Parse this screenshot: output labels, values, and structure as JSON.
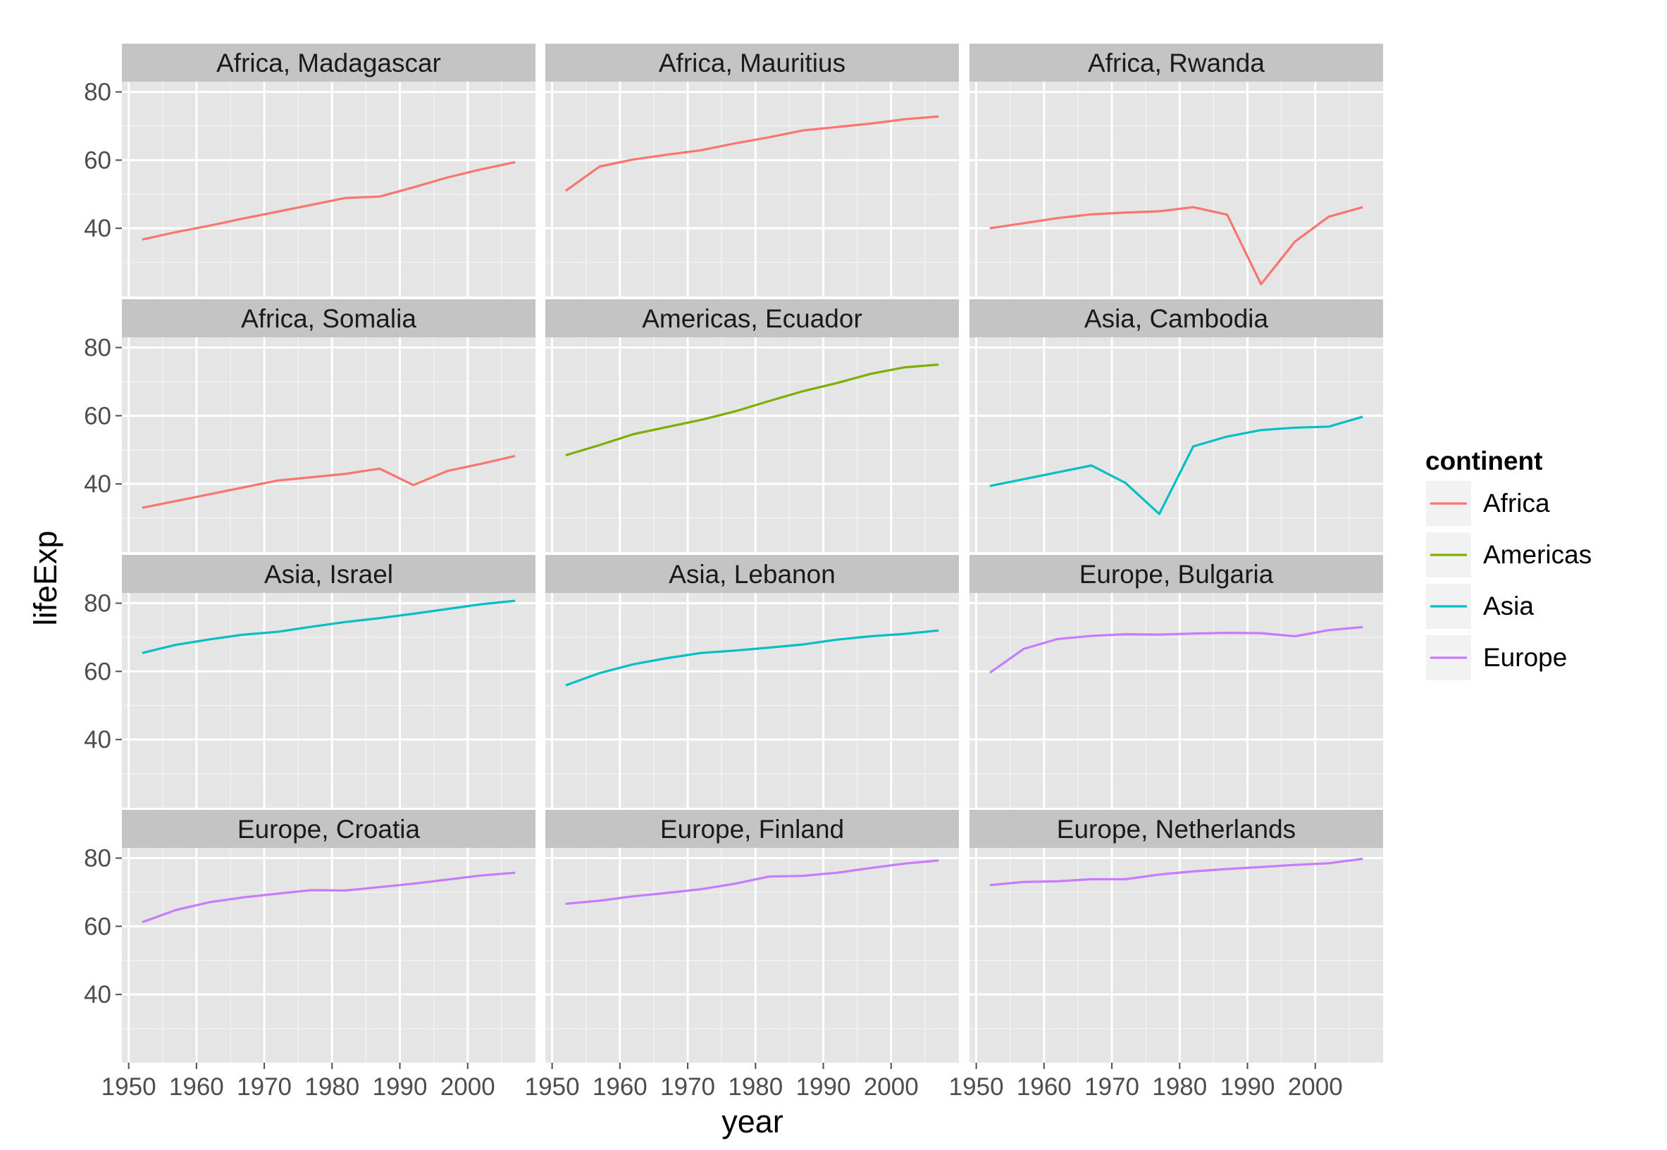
{
  "chart_data": {
    "type": "line",
    "xlabel": "year",
    "ylabel": "lifeExp",
    "xlim": [
      1949,
      2010
    ],
    "ylim": [
      20,
      83
    ],
    "x_ticks": [
      1950,
      1960,
      1970,
      1980,
      1990,
      2000
    ],
    "y_ticks": [
      40,
      60,
      80
    ],
    "x": [
      1952,
      1957,
      1962,
      1967,
      1972,
      1977,
      1982,
      1987,
      1992,
      1997,
      2002,
      2007
    ],
    "colors": {
      "Africa": "#F8766D",
      "Americas": "#7CAE00",
      "Asia": "#00BFC4",
      "Europe": "#C77CFF"
    },
    "legend": {
      "title": "continent",
      "placement": "right",
      "entries": [
        "Africa",
        "Americas",
        "Asia",
        "Europe"
      ]
    },
    "grid": true,
    "panels": [
      {
        "label": "Africa, Madagascar",
        "continent": "Africa",
        "values": [
          36.7,
          38.9,
          40.8,
          42.9,
          44.9,
          46.9,
          48.9,
          49.3,
          52.0,
          54.9,
          57.3,
          59.4
        ]
      },
      {
        "label": "Africa, Mauritius",
        "continent": "Africa",
        "values": [
          51.0,
          58.1,
          60.2,
          61.6,
          62.9,
          64.9,
          66.7,
          68.7,
          69.7,
          70.7,
          72.0,
          72.8
        ]
      },
      {
        "label": "Africa, Rwanda",
        "continent": "Africa",
        "values": [
          40.0,
          41.5,
          43.0,
          44.1,
          44.6,
          45.0,
          46.2,
          44.0,
          23.6,
          36.1,
          43.4,
          46.2
        ]
      },
      {
        "label": "Africa, Somalia",
        "continent": "Africa",
        "values": [
          33.0,
          35.0,
          37.0,
          39.0,
          41.0,
          41.97,
          42.95,
          44.5,
          39.66,
          43.8,
          45.9,
          48.2
        ]
      },
      {
        "label": "Americas, Ecuador",
        "continent": "Americas",
        "values": [
          48.4,
          51.4,
          54.6,
          56.7,
          58.8,
          61.3,
          64.3,
          67.2,
          69.6,
          72.3,
          74.2,
          75.0
        ]
      },
      {
        "label": "Asia, Cambodia",
        "continent": "Asia",
        "values": [
          39.4,
          41.4,
          43.4,
          45.4,
          40.3,
          31.2,
          51.0,
          53.9,
          55.8,
          56.5,
          56.8,
          59.7
        ]
      },
      {
        "label": "Asia, Israel",
        "continent": "Asia",
        "values": [
          65.4,
          67.8,
          69.4,
          70.8,
          71.6,
          73.1,
          74.5,
          75.6,
          76.9,
          78.3,
          79.7,
          80.7
        ]
      },
      {
        "label": "Asia, Lebanon",
        "continent": "Asia",
        "values": [
          55.9,
          59.5,
          62.1,
          63.9,
          65.4,
          66.1,
          66.98,
          67.9,
          69.3,
          70.3,
          71.0,
          72.0
        ]
      },
      {
        "label": "Europe, Bulgaria",
        "continent": "Europe",
        "values": [
          59.6,
          66.6,
          69.5,
          70.4,
          70.9,
          70.8,
          71.1,
          71.3,
          71.2,
          70.3,
          72.1,
          73.0
        ]
      },
      {
        "label": "Europe, Croatia",
        "continent": "Europe",
        "values": [
          61.2,
          64.8,
          67.1,
          68.5,
          69.6,
          70.6,
          70.5,
          71.5,
          72.5,
          73.7,
          74.9,
          75.7
        ]
      },
      {
        "label": "Europe, Finland",
        "continent": "Europe",
        "values": [
          66.6,
          67.5,
          68.8,
          69.8,
          70.9,
          72.5,
          74.6,
          74.8,
          75.7,
          77.1,
          78.4,
          79.3
        ]
      },
      {
        "label": "Europe, Netherlands",
        "continent": "Europe",
        "values": [
          72.1,
          73.0,
          73.2,
          73.8,
          73.8,
          75.2,
          76.1,
          76.8,
          77.4,
          78.0,
          78.5,
          79.8
        ]
      }
    ]
  }
}
